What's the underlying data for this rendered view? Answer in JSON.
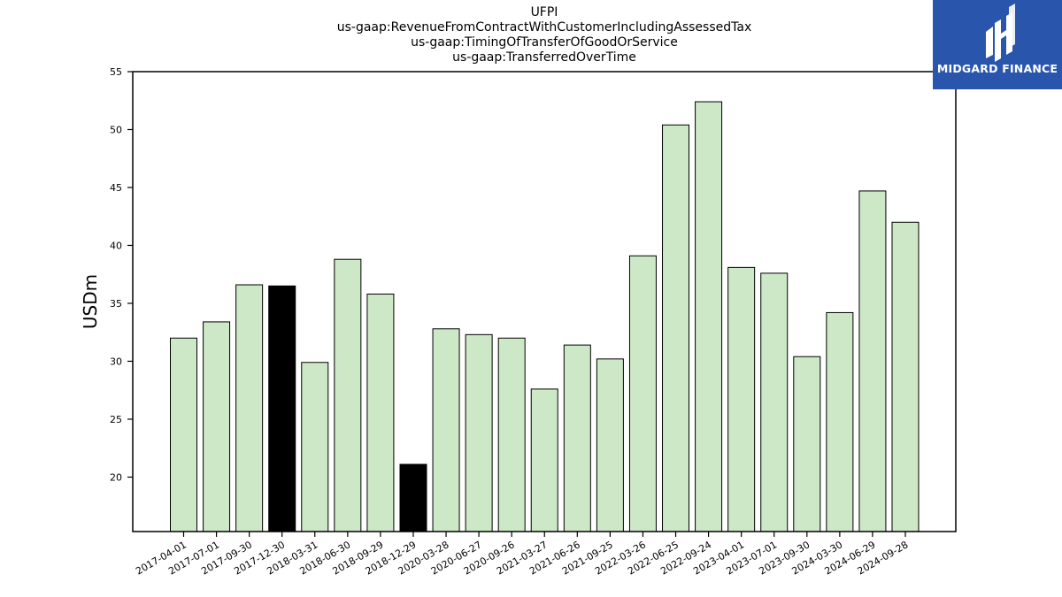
{
  "chart_data": {
    "type": "bar",
    "title_lines": [
      "UFPI",
      "us-gaap:RevenueFromContractWithCustomerIncludingAssessedTax",
      "us-gaap:TimingOfTransferOfGoodOrService",
      "us-gaap:TransferredOverTime"
    ],
    "ylabel": "USDm",
    "xlabel": "",
    "ylim": [
      15.3,
      55
    ],
    "yticks": [
      20,
      25,
      30,
      35,
      40,
      45,
      50,
      55
    ],
    "grid": false,
    "categories": [
      "2017-04-01",
      "2017-07-01",
      "2017-09-30",
      "2017-12-30",
      "2018-03-31",
      "2018-06-30",
      "2018-09-29",
      "2018-12-29",
      "2020-03-28",
      "2020-06-27",
      "2020-09-26",
      "2021-03-27",
      "2021-06-26",
      "2021-09-25",
      "2022-03-26",
      "2022-06-25",
      "2022-09-24",
      "2023-04-01",
      "2023-07-01",
      "2023-09-30",
      "2024-03-30",
      "2024-06-29",
      "2024-09-28"
    ],
    "values": [
      32.0,
      33.4,
      36.6,
      36.5,
      29.9,
      38.8,
      35.8,
      21.1,
      32.8,
      32.3,
      32.0,
      27.6,
      31.4,
      30.2,
      39.1,
      50.4,
      52.4,
      38.1,
      37.6,
      30.4,
      34.2,
      44.7,
      42.0
    ],
    "highlighted": [
      "2017-12-30",
      "2018-12-29"
    ],
    "colors": {
      "bar": "#cde8c6",
      "highlight": "#000000",
      "edge": "#000000"
    }
  },
  "logo": {
    "text": "MIDGARD FINANCE",
    "background": "#2a55ad"
  }
}
